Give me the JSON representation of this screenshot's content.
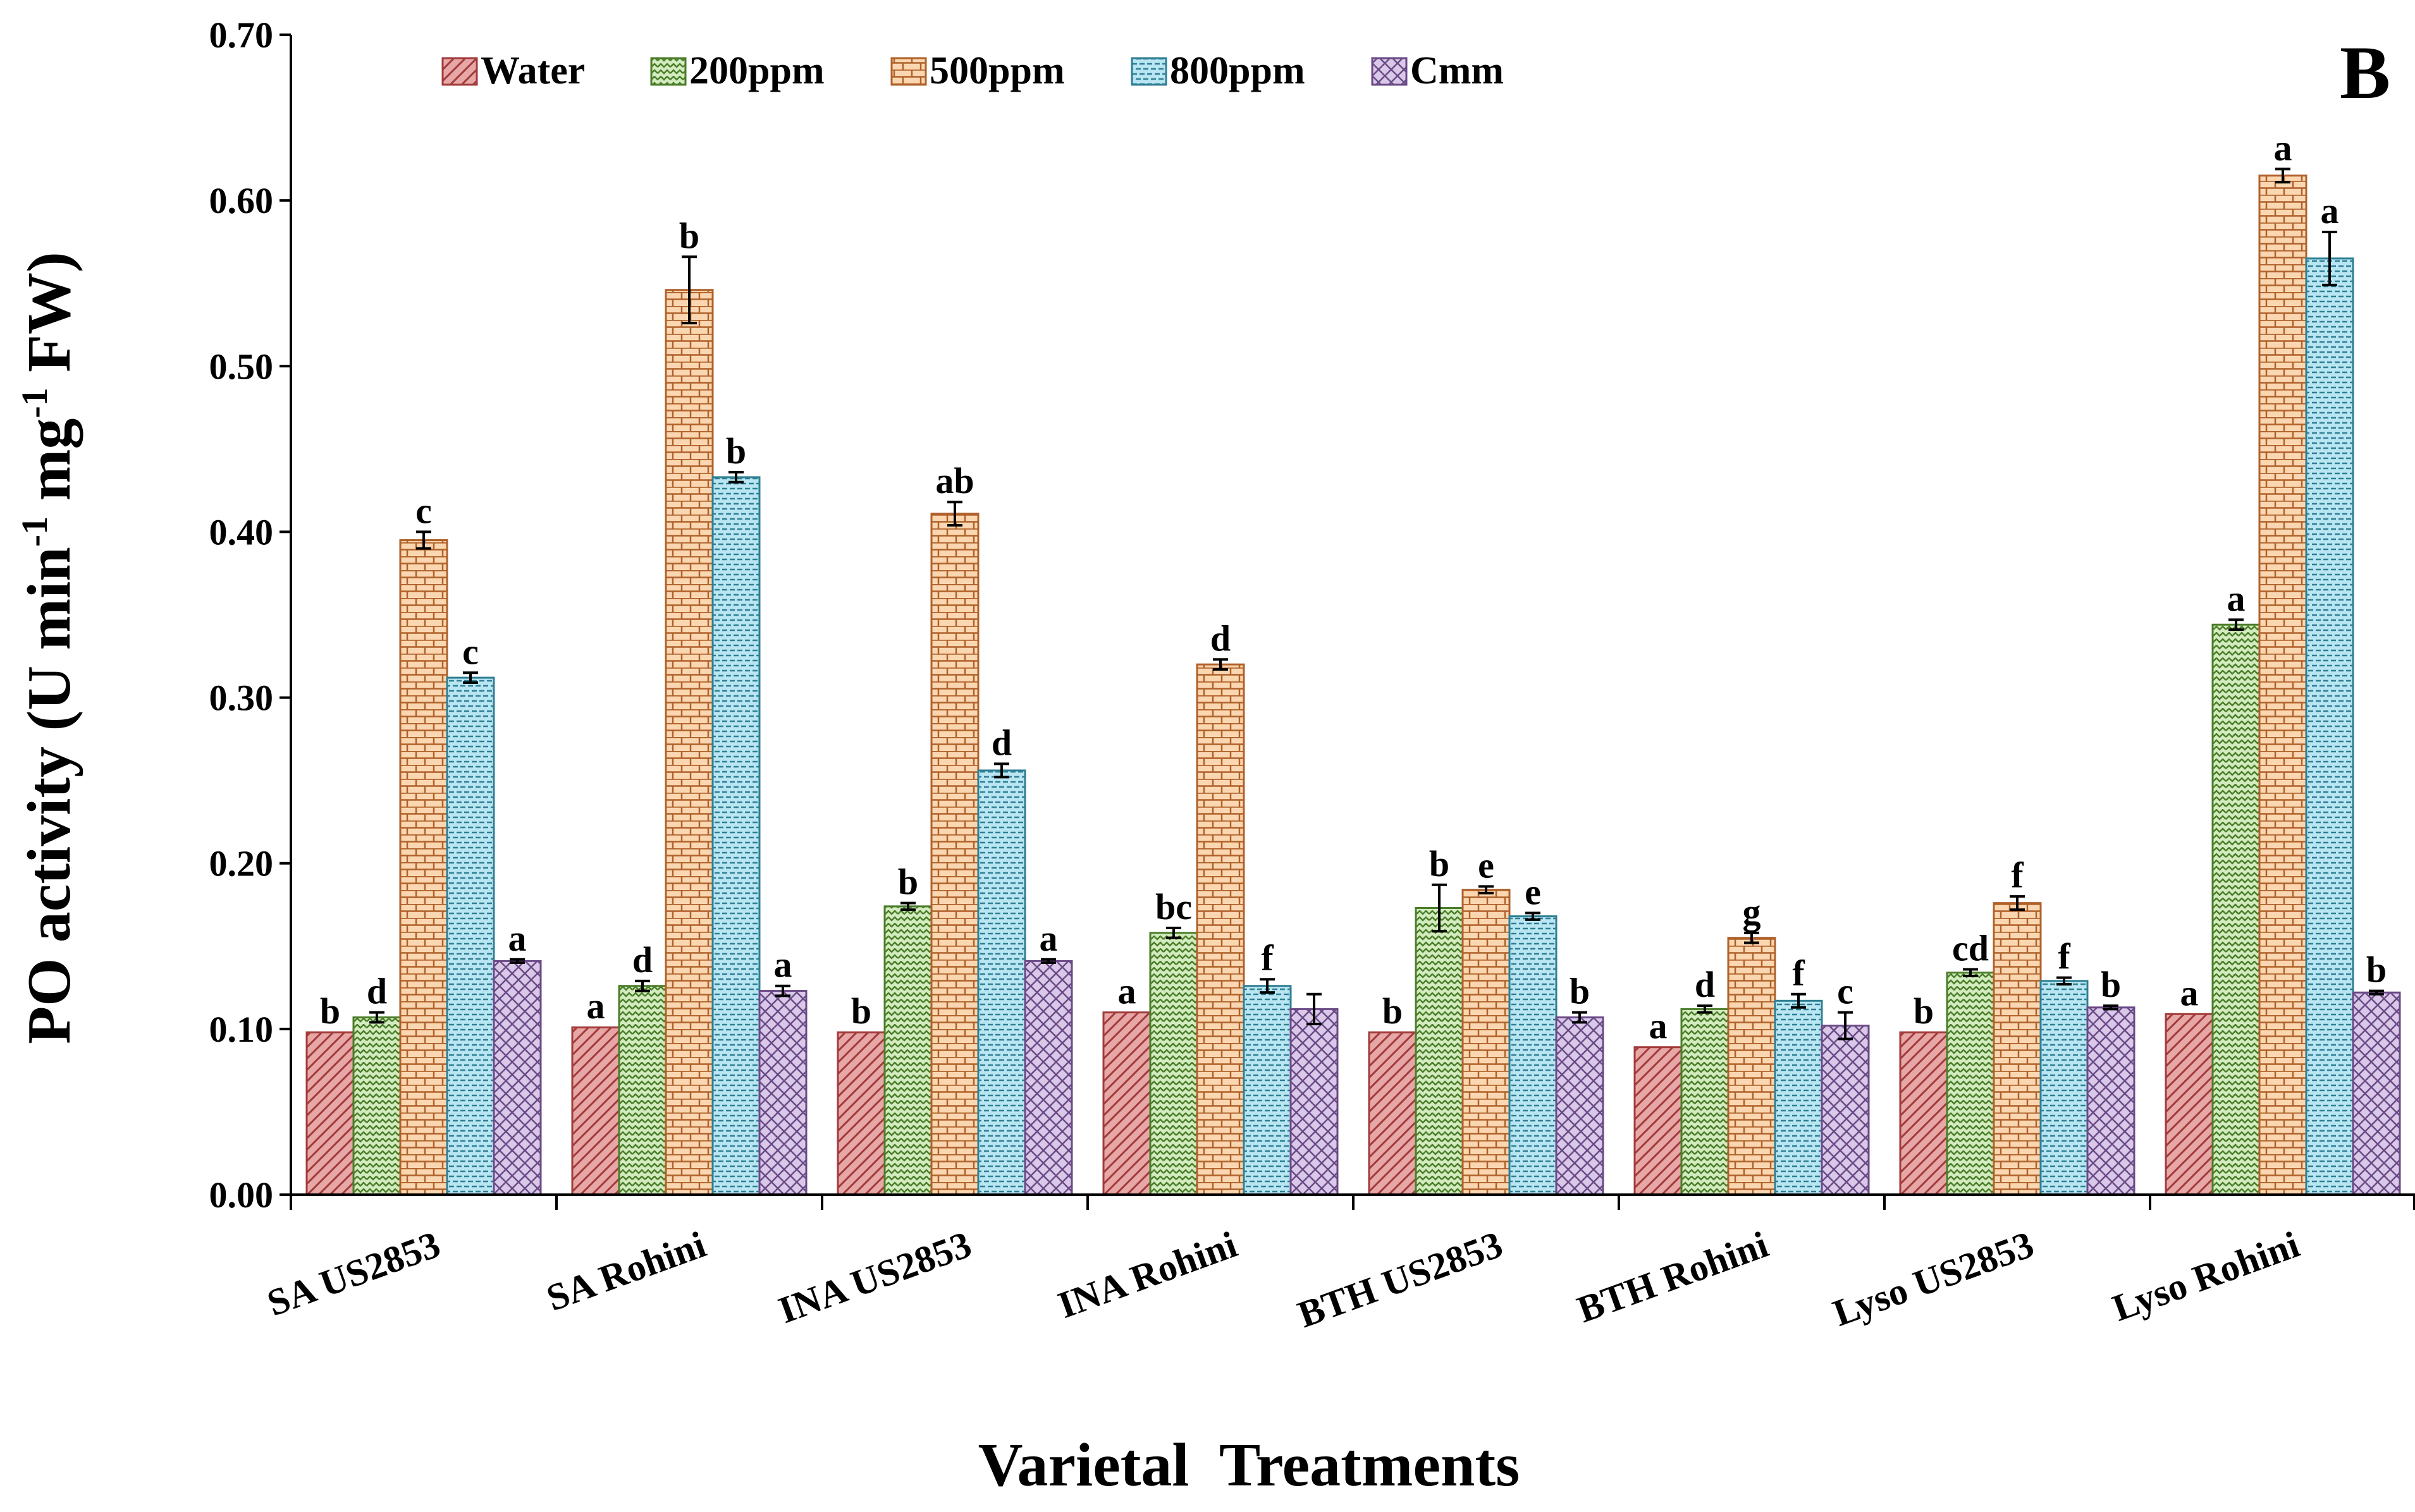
{
  "chart_data": {
    "type": "bar",
    "title": "",
    "panel_label": "B",
    "xlabel": "Varietal  Treatments",
    "ylabel_parts": {
      "main": "PO activity (U min",
      "sup1": "-1",
      "mid": " mg",
      "sup2": "-1",
      "end": " FW)"
    },
    "ylim": [
      0,
      0.7
    ],
    "yticks": [
      0.0,
      0.1,
      0.2,
      0.3,
      0.4,
      0.5,
      0.6,
      0.7
    ],
    "ytick_labels": [
      "0.00",
      "0.10",
      "0.20",
      "0.30",
      "0.40",
      "0.50",
      "0.60",
      "0.70"
    ],
    "legend_position": "top",
    "categories": [
      "SA US2853",
      "SA Rohini",
      "INA US2853",
      "INA Rohini",
      "BTH US2853",
      "BTH Rohini",
      "Lyso US2853",
      "Lyso Rohini"
    ],
    "series": [
      {
        "name": "Water",
        "color": "#e8a7a7",
        "stroke": "#a23b3b",
        "pattern": "hatch",
        "values": [
          0.098,
          0.101,
          0.098,
          0.11,
          0.098,
          0.089,
          0.098,
          0.109
        ],
        "errors": [
          0.0,
          0.0,
          0.0,
          0.0,
          0.0,
          0.0,
          0.0,
          0.0
        ],
        "labels": [
          "b",
          "a",
          "b",
          "a",
          "b",
          "a",
          "b",
          "a"
        ]
      },
      {
        "name": "200ppm",
        "color": "#d3ecbf",
        "stroke": "#4b7d2a",
        "pattern": "zigzag",
        "values": [
          0.107,
          0.126,
          0.174,
          0.158,
          0.173,
          0.112,
          0.134,
          0.344
        ],
        "errors": [
          0.003,
          0.003,
          0.002,
          0.003,
          0.014,
          0.002,
          0.002,
          0.003
        ],
        "labels": [
          "d",
          "d",
          "b",
          "bc",
          "b",
          "d",
          "cd",
          "a"
        ]
      },
      {
        "name": "500ppm",
        "color": "#fbd7b1",
        "stroke": "#b0612a",
        "pattern": "brick",
        "values": [
          0.395,
          0.546,
          0.411,
          0.32,
          0.184,
          0.155,
          0.176,
          0.615
        ],
        "errors": [
          0.005,
          0.02,
          0.007,
          0.003,
          0.002,
          0.003,
          0.004,
          0.004
        ],
        "labels": [
          "c",
          "b",
          "ab",
          "d",
          "e",
          "g",
          "f",
          "a"
        ]
      },
      {
        "name": "800ppm",
        "color": "#b9e6f2",
        "stroke": "#2f7f94",
        "pattern": "dash",
        "values": [
          0.312,
          0.433,
          0.256,
          0.126,
          0.168,
          0.117,
          0.129,
          0.565
        ],
        "errors": [
          0.003,
          0.003,
          0.004,
          0.004,
          0.002,
          0.004,
          0.002,
          0.016
        ],
        "labels": [
          "c",
          "b",
          "d",
          "f",
          "e",
          "f",
          "f",
          "a"
        ]
      },
      {
        "name": "Cmm",
        "color": "#d9c8e8",
        "stroke": "#6a4a86",
        "pattern": "diamond",
        "values": [
          0.141,
          0.123,
          0.141,
          0.112,
          0.107,
          0.102,
          0.113,
          0.122
        ],
        "errors": [
          0.001,
          0.003,
          0.001,
          0.009,
          0.003,
          0.008,
          0.001,
          0.001
        ],
        "labels": [
          "a",
          "a",
          "a",
          "",
          "b",
          "c",
          "b",
          "b"
        ]
      }
    ]
  }
}
